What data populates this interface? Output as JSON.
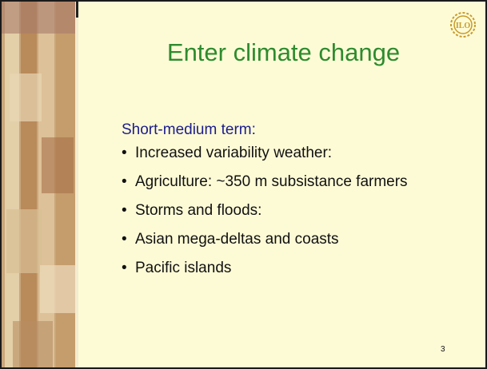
{
  "slide": {
    "logo_text": "ILO",
    "title": "Enter climate change",
    "subtitle": "Short-medium term:",
    "bullets": [
      "Increased variability weather:",
      "Agriculture: ~350 m subsistance farmers",
      "Storms and floods:",
      "Asian mega-deltas and coasts",
      "Pacific islands"
    ],
    "page_number": "3"
  }
}
